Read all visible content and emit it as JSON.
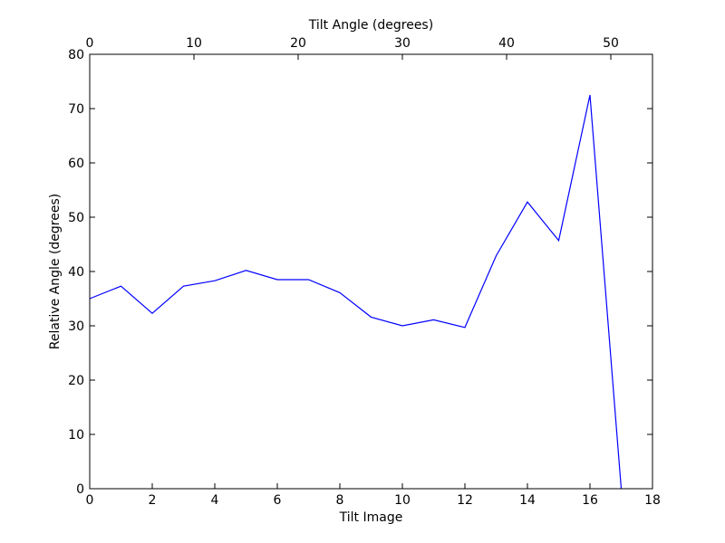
{
  "chart_data": {
    "type": "line",
    "title": "",
    "xlabel": "Tilt Image",
    "ylabel": "Relative Angle (degrees)",
    "top_xlabel": "Tilt Angle (degrees)",
    "xlim": [
      0,
      18
    ],
    "ylim": [
      0,
      80
    ],
    "top_xlim": [
      0,
      54
    ],
    "x_ticks": [
      0,
      2,
      4,
      6,
      8,
      10,
      12,
      14,
      16,
      18
    ],
    "y_ticks": [
      0,
      10,
      20,
      30,
      40,
      50,
      60,
      70,
      80
    ],
    "top_x_ticks": [
      0,
      10,
      20,
      30,
      40,
      50
    ],
    "grid": false,
    "line_color": "#0000ff",
    "series": [
      {
        "x": [
          0,
          1,
          2,
          3,
          4,
          5,
          6,
          7,
          8,
          9,
          10,
          11,
          12,
          13,
          14,
          15,
          16,
          17
        ],
        "values": [
          35.0,
          37.3,
          32.3,
          37.3,
          38.3,
          40.2,
          38.5,
          38.5,
          36.1,
          31.6,
          30.0,
          31.1,
          29.7,
          42.9,
          52.8,
          45.7,
          72.5,
          0.0
        ]
      }
    ]
  }
}
